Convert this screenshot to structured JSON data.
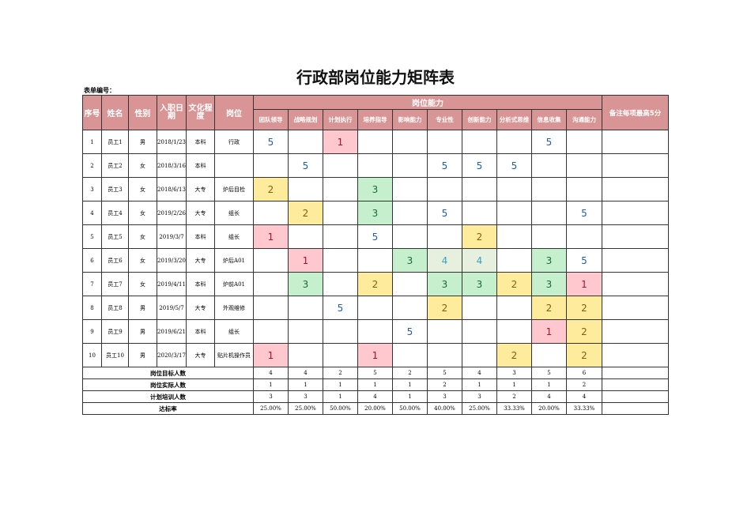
{
  "title": "行政部岗位能力矩阵表",
  "form_no_label": "表单编号：",
  "headers": {
    "seq": "序号",
    "name": "姓名",
    "gender": "性别",
    "hire_date": "入职日期",
    "education": "文化程度",
    "position": "岗位",
    "ability_group": "岗位能力",
    "remark": "备注每项最高5分"
  },
  "abilities": [
    "团队领导",
    "战略规划",
    "计划执行",
    "培养指导",
    "影响能力",
    "专业性",
    "创新能力",
    "分析式思维",
    "信息收集",
    "沟通能力"
  ],
  "colors": {
    "header": "#d99595",
    "pink": "#ffc7ce",
    "yellow": "#ffeb9c",
    "green": "#c6efce",
    "light": "#e7efdf"
  },
  "rows": [
    {
      "seq": "1",
      "name": "员工1",
      "gender": "男",
      "date": "2018/1/23",
      "edu": "本科",
      "pos": "行政",
      "scores": [
        "5",
        "",
        "1",
        "",
        "",
        "",
        "",
        "",
        "5",
        ""
      ],
      "fills": [
        "",
        "",
        "pink",
        "",
        "",
        "",
        "",
        "",
        "",
        ""
      ]
    },
    {
      "seq": "2",
      "name": "员工2",
      "gender": "女",
      "date": "2018/3/16",
      "edu": "本科",
      "pos": "",
      "scores": [
        "",
        "5",
        "",
        "",
        "",
        "5",
        "5",
        "5",
        "",
        ""
      ],
      "fills": [
        "",
        "",
        "",
        "",
        "",
        "",
        "",
        "",
        "",
        ""
      ]
    },
    {
      "seq": "3",
      "name": "员工3",
      "gender": "女",
      "date": "2018/6/13",
      "edu": "大专",
      "pos": "炉后目检",
      "scores": [
        "2",
        "",
        "",
        "3",
        "",
        "",
        "",
        "",
        "",
        ""
      ],
      "fills": [
        "yellow",
        "",
        "",
        "green",
        "",
        "",
        "",
        "",
        "",
        ""
      ]
    },
    {
      "seq": "4",
      "name": "员工4",
      "gender": "女",
      "date": "2019/2/26",
      "edu": "大专",
      "pos": "组长",
      "scores": [
        "",
        "2",
        "",
        "3",
        "",
        "5",
        "",
        "",
        "",
        "5"
      ],
      "fills": [
        "",
        "yellow",
        "",
        "green",
        "",
        "",
        "",
        "",
        "",
        ""
      ]
    },
    {
      "seq": "5",
      "name": "员工5",
      "gender": "女",
      "date": "2019/3/7",
      "edu": "本科",
      "pos": "组长",
      "scores": [
        "1",
        "",
        "",
        "5",
        "",
        "",
        "2",
        "",
        "",
        ""
      ],
      "fills": [
        "pink",
        "",
        "",
        "",
        "",
        "",
        "yellow",
        "",
        "",
        ""
      ]
    },
    {
      "seq": "6",
      "name": "员工6",
      "gender": "女",
      "date": "2019/3/20",
      "edu": "大专",
      "pos": "炉后A01",
      "scores": [
        "",
        "1",
        "",
        "",
        "3",
        "4",
        "4",
        "",
        "3",
        "5"
      ],
      "fills": [
        "",
        "pink",
        "",
        "",
        "green",
        "light",
        "light",
        "",
        "green",
        ""
      ]
    },
    {
      "seq": "7",
      "name": "员工7",
      "gender": "女",
      "date": "2019/4/11",
      "edu": "本科",
      "pos": "炉前A01",
      "scores": [
        "",
        "3",
        "",
        "2",
        "",
        "3",
        "3",
        "2",
        "3",
        "1"
      ],
      "fills": [
        "",
        "green",
        "",
        "yellow",
        "",
        "green",
        "green",
        "yellow",
        "green",
        "pink"
      ]
    },
    {
      "seq": "8",
      "name": "员工8",
      "gender": "男",
      "date": "2019/5/7",
      "edu": "大专",
      "pos": "外观维修",
      "scores": [
        "",
        "",
        "5",
        "",
        "",
        "2",
        "",
        "",
        "2",
        "2"
      ],
      "fills": [
        "",
        "",
        "",
        "",
        "",
        "yellow",
        "",
        "",
        "yellow",
        "yellow"
      ]
    },
    {
      "seq": "9",
      "name": "员工9",
      "gender": "男",
      "date": "2019/6/21",
      "edu": "本科",
      "pos": "组长",
      "scores": [
        "",
        "",
        "",
        "",
        "5",
        "",
        "",
        "",
        "1",
        "2"
      ],
      "fills": [
        "",
        "",
        "",
        "",
        "",
        "",
        "",
        "",
        "pink",
        "yellow"
      ]
    },
    {
      "seq": "10",
      "name": "员工10",
      "gender": "男",
      "date": "2020/3/17",
      "edu": "大专",
      "pos": "贴片机操作员",
      "scores": [
        "1",
        "",
        "",
        "1",
        "",
        "",
        "",
        "2",
        "",
        "2"
      ],
      "fills": [
        "pink",
        "",
        "",
        "pink",
        "",
        "",
        "",
        "yellow",
        "",
        "yellow"
      ]
    }
  ],
  "summary": [
    {
      "label": "岗位目标人数",
      "values": [
        "4",
        "4",
        "2",
        "5",
        "2",
        "5",
        "4",
        "3",
        "5",
        "6"
      ]
    },
    {
      "label": "岗位实际人数",
      "values": [
        "1",
        "1",
        "1",
        "1",
        "1",
        "2",
        "1",
        "1",
        "1",
        "2"
      ]
    },
    {
      "label": "计划培训人数",
      "values": [
        "3",
        "3",
        "1",
        "4",
        "1",
        "3",
        "3",
        "2",
        "4",
        "4"
      ]
    },
    {
      "label": "达标率",
      "values": [
        "25.00%",
        "25.00%",
        "50.00%",
        "20.00%",
        "50.00%",
        "40.00%",
        "25.00%",
        "33.33%",
        "20.00%",
        "33.33%"
      ]
    }
  ]
}
